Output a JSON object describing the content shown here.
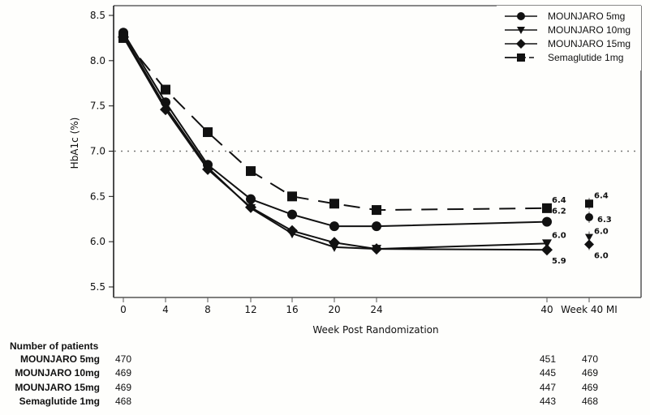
{
  "chart_data": {
    "type": "line",
    "title": "",
    "xlabel": "Week Post Randomization",
    "ylabel": "HbA1c (%)",
    "ylim": [
      5.4,
      8.6
    ],
    "yticks": [
      5.5,
      6.0,
      6.5,
      7.0,
      7.5,
      8.0,
      8.5
    ],
    "ytick_labels": [
      "5.5",
      "6.0",
      "6.5",
      "7.0",
      "7.5",
      "8.0",
      "8.5"
    ],
    "x_categories": [
      "0",
      "4",
      "8",
      "12",
      "16",
      "20",
      "24",
      "40",
      "Week 40 MI"
    ],
    "x_category_values": [
      0,
      4,
      8,
      12,
      16,
      20,
      24,
      40,
      44
    ],
    "reference_line": {
      "y": 7.0,
      "style": "dotted"
    },
    "legend_position": "top-right",
    "series": [
      {
        "name": "MOUNJARO 5mg",
        "marker": "circle",
        "line": "solid",
        "weeks": [
          0,
          4,
          8,
          12,
          16,
          20,
          24,
          40
        ],
        "values": [
          8.31,
          7.54,
          6.85,
          6.47,
          6.3,
          6.17,
          6.17,
          6.22
        ],
        "week40_label": "6.2",
        "mi_value": 6.27,
        "mi_label": "6.3"
      },
      {
        "name": "MOUNJARO 10mg",
        "marker": "triangle-down",
        "line": "solid",
        "weeks": [
          0,
          4,
          8,
          12,
          16,
          20,
          24,
          40
        ],
        "values": [
          8.28,
          7.49,
          6.82,
          6.37,
          6.09,
          5.94,
          5.92,
          5.98
        ],
        "week40_label": "6.0",
        "mi_value": 6.05,
        "mi_label": "6.0"
      },
      {
        "name": "MOUNJARO 15mg",
        "marker": "diamond",
        "line": "solid",
        "weeks": [
          0,
          4,
          8,
          12,
          16,
          20,
          24,
          40
        ],
        "values": [
          8.26,
          7.46,
          6.8,
          6.38,
          6.12,
          5.99,
          5.92,
          5.91
        ],
        "week40_label": "5.9",
        "mi_value": 5.97,
        "mi_label": "6.0"
      },
      {
        "name": "Semaglutide 1mg",
        "marker": "square",
        "line": "dashed",
        "weeks": [
          0,
          4,
          8,
          12,
          16,
          20,
          24,
          40
        ],
        "values": [
          8.25,
          7.68,
          7.21,
          6.78,
          6.5,
          6.42,
          6.35,
          6.37
        ],
        "week40_label": "6.4",
        "mi_value": 6.42,
        "mi_label": "6.4"
      }
    ]
  },
  "patients_table": {
    "title": "Number of patients",
    "rows": [
      {
        "name": "MOUNJARO 5mg",
        "week0": "470",
        "week40": "451",
        "week40_mi": "470"
      },
      {
        "name": "MOUNJARO 10mg",
        "week0": "469",
        "week40": "445",
        "week40_mi": "469"
      },
      {
        "name": "MOUNJARO 15mg",
        "week0": "469",
        "week40": "447",
        "week40_mi": "469"
      },
      {
        "name": "Semaglutide 1mg",
        "week0": "468",
        "week40": "443",
        "week40_mi": "468"
      }
    ]
  }
}
